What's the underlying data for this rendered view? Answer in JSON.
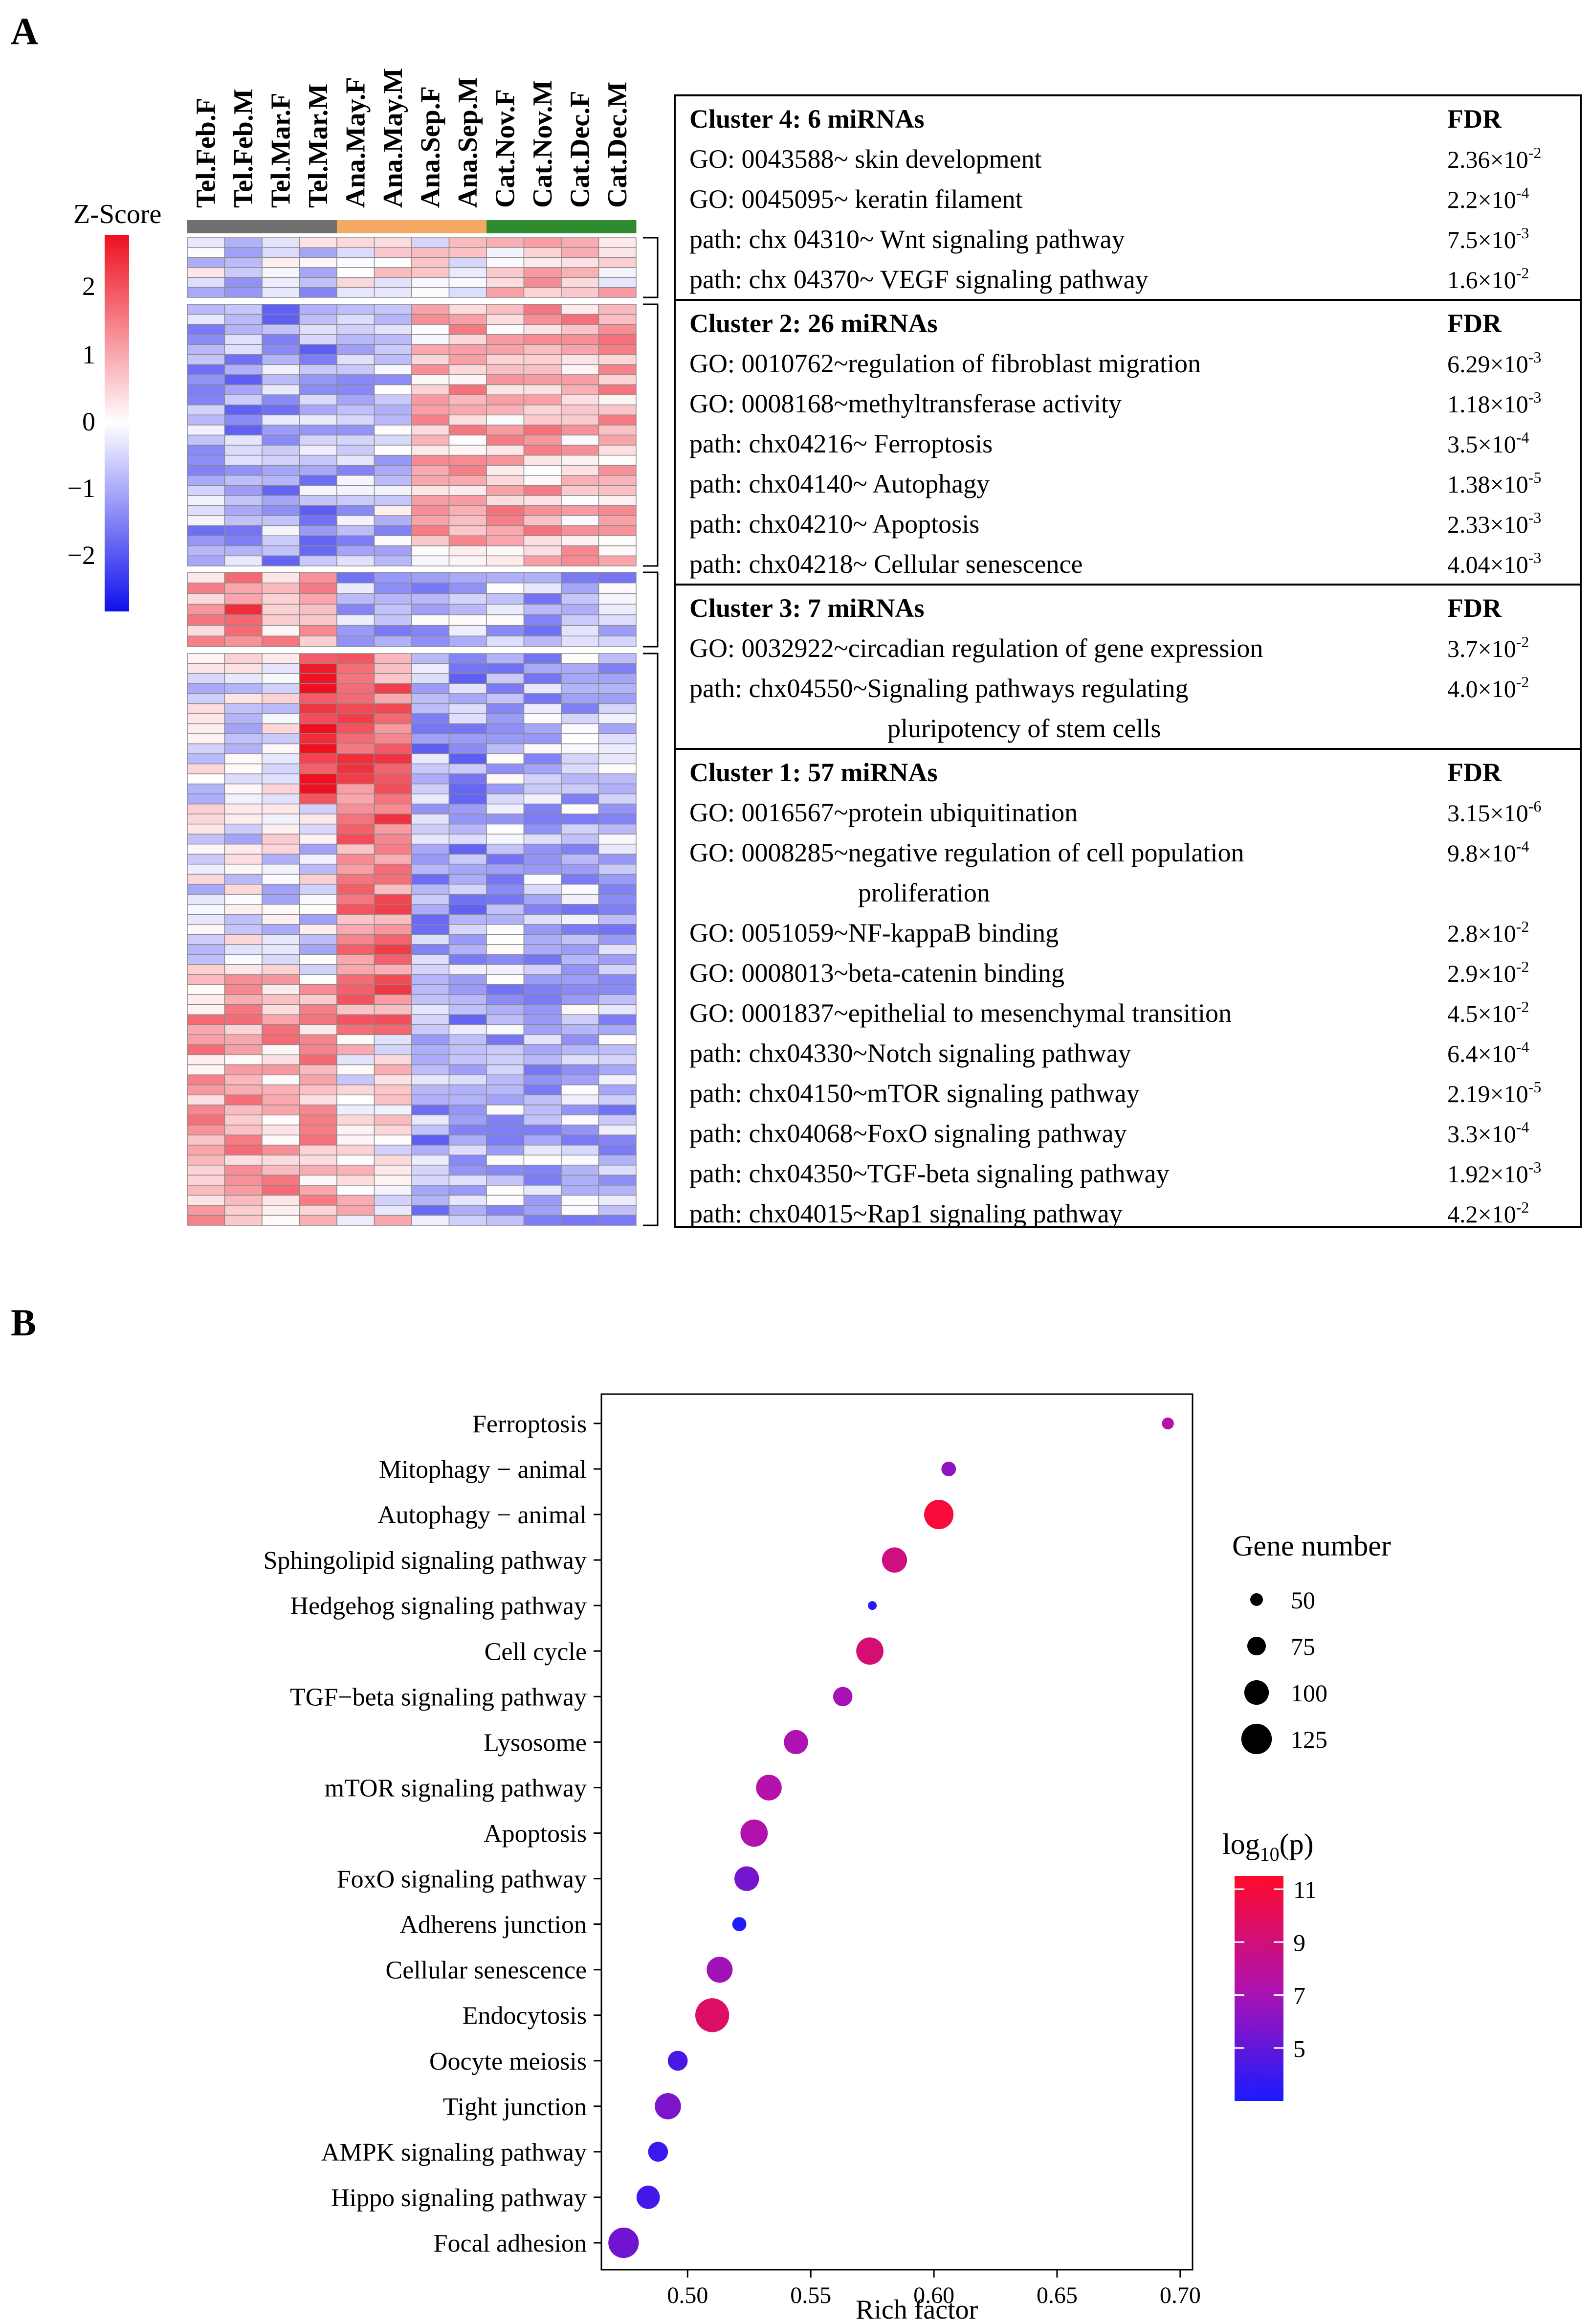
{
  "panel_a_label": "A",
  "panel_b_label": "B",
  "heatmap": {
    "zscore_title": "Z-Score",
    "scale_ticks": [
      "2",
      "1",
      "0",
      "−1",
      "−2"
    ],
    "columns": [
      "Tel.Feb.F",
      "Tel.Feb.M",
      "Tel.Mar.F",
      "Tel.Mar.M",
      "Ana.May.F",
      "Ana.May.M",
      "Ana.Sep.F",
      "Ana.Sep.M",
      "Cat.Nov.F",
      "Cat.Nov.M",
      "Cat.Dec.F",
      "Cat.Dec.M"
    ],
    "group_colors": [
      "#707070",
      "#707070",
      "#707070",
      "#707070",
      "#f4a962",
      "#f4a962",
      "#f4a962",
      "#f4a962",
      "#2e8b2e",
      "#2e8b2e",
      "#2e8b2e",
      "#2e8b2e"
    ],
    "low_color": "#1010ee",
    "mid_color": "#ffffff",
    "high_color": "#ee1020",
    "cluster_row_counts": [
      6,
      26,
      7,
      57
    ]
  },
  "enrichment_table": {
    "clusters": [
      {
        "header": "Cluster 4: 6 miRNAs",
        "fdr_label": "FDR",
        "rows": [
          {
            "term": "GO: 0043588~ skin development",
            "fdr_base": "2.36×10",
            "fdr_exp": "-2"
          },
          {
            "term": "GO: 0045095~ keratin filament",
            "fdr_base": "2.2×10",
            "fdr_exp": "-4"
          },
          {
            "term": "path: chx 04310~ Wnt signaling pathway",
            "fdr_base": "7.5×10",
            "fdr_exp": "-3"
          },
          {
            "term": "path: chx 04370~ VEGF signaling pathway",
            "fdr_base": "1.6×10",
            "fdr_exp": "-2"
          }
        ]
      },
      {
        "header": "Cluster 2: 26 miRNAs",
        "fdr_label": "FDR",
        "rows": [
          {
            "term": "GO: 0010762~regulation of fibroblast migration",
            "fdr_base": "6.29×10",
            "fdr_exp": "-3"
          },
          {
            "term": "GO: 0008168~methyltransferase activity",
            "fdr_base": "1.18×10",
            "fdr_exp": "-3"
          },
          {
            "term": "path: chx04216~ Ferroptosis",
            "fdr_base": "3.5×10",
            "fdr_exp": "-4"
          },
          {
            "term": "path: chx04140~ Autophagy",
            "fdr_base": "1.38×10",
            "fdr_exp": "-5"
          },
          {
            "term": "path: chx04210~ Apoptosis",
            "fdr_base": "2.33×10",
            "fdr_exp": "-3"
          },
          {
            "term": "path: chx04218~ Cellular senescence",
            "fdr_base": "4.04×10",
            "fdr_exp": "-3"
          }
        ]
      },
      {
        "header": "Cluster 3: 7 miRNAs",
        "fdr_label": "FDR",
        "rows": [
          {
            "term": "GO: 0032922~circadian regulation of gene expression",
            "fdr_base": "3.7×10",
            "fdr_exp": "-2"
          },
          {
            "term": "path: chx04550~Signaling pathways regulating",
            "cont": "pluripotency of stem cells",
            "fdr_base": "4.0×10",
            "fdr_exp": "-2"
          }
        ]
      },
      {
        "header": "Cluster 1: 57 miRNAs",
        "fdr_label": "FDR",
        "rows": [
          {
            "term": "GO: 0016567~protein ubiquitination",
            "fdr_base": "3.15×10",
            "fdr_exp": "-6"
          },
          {
            "term": "GO: 0008285~negative regulation of cell population",
            "cont": "proliferation",
            "fdr_base": "9.8×10",
            "fdr_exp": "-4"
          },
          {
            "term": "GO: 0051059~NF-kappaB binding",
            "fdr_base": "2.8×10",
            "fdr_exp": "-2"
          },
          {
            "term": "GO: 0008013~beta-catenin binding",
            "fdr_base": "2.9×10",
            "fdr_exp": "-2"
          },
          {
            "term": "GO: 0001837~epithelial to mesenchymal transition",
            "fdr_base": "4.5×10",
            "fdr_exp": "-2"
          },
          {
            "term": "path: chx04330~Notch signaling pathway",
            "fdr_base": "6.4×10",
            "fdr_exp": "-4"
          },
          {
            "term": "path: chx04150~mTOR signaling pathway",
            "fdr_base": "2.19×10",
            "fdr_exp": "-5"
          },
          {
            "term": "path: chx04068~FoxO signaling pathway",
            "fdr_base": "3.3×10",
            "fdr_exp": "-4"
          },
          {
            "term": "path: chx04350~TGF-beta signaling pathway",
            "fdr_base": "1.92×10",
            "fdr_exp": "-3"
          },
          {
            "term": "path: chx04015~Rap1 signaling pathway",
            "fdr_base": "4.2×10",
            "fdr_exp": "-2"
          }
        ]
      }
    ]
  },
  "chart_data": {
    "type": "scatter",
    "title": "",
    "xlabel": "Rich factor",
    "ylabel": "",
    "xlim": [
      0.465,
      0.705
    ],
    "x_ticks": [
      0.5,
      0.55,
      0.6,
      0.65,
      0.7
    ],
    "x_tick_labels": [
      "0.50",
      "0.55",
      "0.60",
      "0.65",
      "0.70"
    ],
    "categories": [
      "Ferroptosis",
      "Mitophagy − animal",
      "Autophagy − animal",
      "Sphingolipid signaling pathway",
      "Hedgehog signaling pathway",
      "Cell cycle",
      "TGF−beta signaling pathway",
      "Lysosome",
      "mTOR signaling pathway",
      "Apoptosis",
      "FoxO signaling pathway",
      "Adherens junction",
      "Cellular senescence",
      "Endocytosis",
      "Oocyte meiosis",
      "Tight junction",
      "AMPK signaling pathway",
      "Hippo signaling pathway",
      "Focal adhesion"
    ],
    "rich_factor": [
      0.695,
      0.606,
      0.602,
      0.584,
      0.575,
      0.574,
      0.563,
      0.544,
      0.533,
      0.527,
      0.524,
      0.521,
      0.513,
      0.51,
      0.496,
      0.492,
      0.488,
      0.484,
      0.474
    ],
    "gene_number": [
      42,
      52,
      108,
      92,
      30,
      100,
      70,
      88,
      94,
      100,
      90,
      50,
      95,
      125,
      72,
      96,
      72,
      85,
      112
    ],
    "log10_p": [
      7.6,
      6.4,
      11.0,
      8.8,
      3.4,
      9.2,
      7.0,
      7.2,
      7.4,
      7.3,
      5.6,
      3.2,
      6.8,
      9.6,
      4.4,
      5.8,
      4.0,
      4.2,
      5.4
    ],
    "size_legend": {
      "title": "Gene number",
      "values": [
        50,
        75,
        100,
        125
      ],
      "labels": [
        "50",
        "75",
        "100",
        "125"
      ]
    },
    "color_legend": {
      "title_main": "log",
      "title_sub": "10",
      "title_tail": "(p)",
      "range": [
        3,
        11.5
      ],
      "ticks": [
        11,
        9,
        7,
        5
      ],
      "tick_labels": [
        "11",
        "9",
        "7",
        "5"
      ],
      "low_color": "#1a1aff",
      "high_color": "#ff0a2a"
    },
    "grid": false,
    "legend_position": "right"
  }
}
